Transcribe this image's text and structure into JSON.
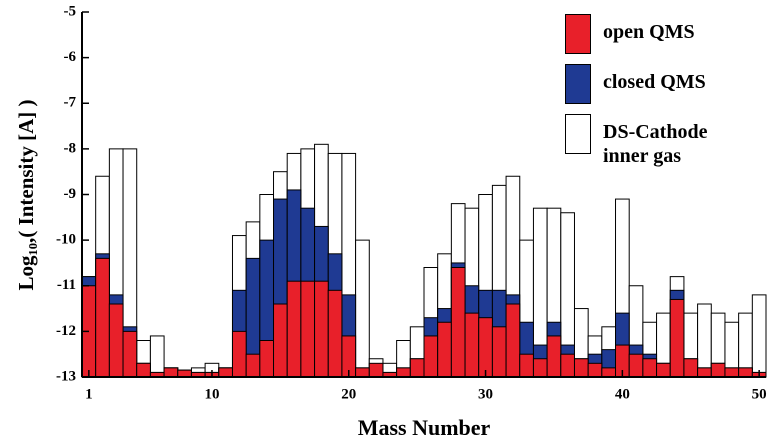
{
  "chart_data": {
    "type": "bar",
    "mode": "overlay",
    "x_label": "Mass Number",
    "y_label": "Log₁₀,( Intensity [A] )",
    "categories": [
      "1",
      null,
      null,
      null,
      null,
      null,
      null,
      null,
      null,
      "10",
      null,
      null,
      null,
      null,
      null,
      null,
      null,
      null,
      null,
      "20",
      null,
      null,
      null,
      null,
      null,
      null,
      null,
      null,
      null,
      "30",
      null,
      null,
      null,
      null,
      null,
      null,
      null,
      null,
      null,
      "40",
      null,
      null,
      null,
      null,
      null,
      null,
      null,
      null,
      null,
      "50"
    ],
    "series": [
      {
        "name": "open QMS",
        "color": "#e8202a",
        "values": [
          -11.0,
          -10.4,
          -11.4,
          -12.0,
          -12.7,
          -12.9,
          -12.8,
          -12.85,
          -12.9,
          -12.9,
          -12.8,
          -12.0,
          -12.5,
          -12.2,
          -11.4,
          -10.9,
          -10.9,
          -10.9,
          -11.1,
          -12.1,
          -12.8,
          -12.7,
          -12.9,
          -12.8,
          -12.6,
          -12.1,
          -11.8,
          -10.6,
          -11.6,
          -11.7,
          -11.9,
          -11.4,
          -12.5,
          -12.6,
          -12.1,
          -12.5,
          -12.6,
          -12.7,
          -12.8,
          -12.3,
          -12.5,
          -12.6,
          -12.7,
          -11.3,
          -12.6,
          -12.8,
          -12.7,
          -12.8,
          -12.8,
          -12.9
        ]
      },
      {
        "name": "closed QMS",
        "color": "#1f3a93",
        "values": [
          -10.8,
          -10.3,
          -11.2,
          -11.9,
          -12.7,
          -12.9,
          -12.8,
          -12.85,
          -12.9,
          -12.9,
          -12.8,
          -11.1,
          -10.4,
          -10.0,
          -9.1,
          -8.9,
          -9.3,
          -9.7,
          -10.3,
          -11.2,
          -12.8,
          -12.9,
          -12.9,
          -12.8,
          -12.6,
          -11.7,
          -11.5,
          -10.5,
          -11.0,
          -11.1,
          -11.1,
          -11.2,
          -11.8,
          -12.3,
          -11.8,
          -12.3,
          -12.6,
          -12.5,
          -12.4,
          -11.6,
          -12.3,
          -12.5,
          -12.7,
          -11.1,
          -12.6,
          -12.8,
          -12.7,
          -12.8,
          -12.8,
          -12.9
        ]
      },
      {
        "name": "DS-Cathode inner gas",
        "color": "#ffffff",
        "values": [
          -10.8,
          -8.6,
          -8.0,
          -8.0,
          -12.2,
          -12.1,
          -12.8,
          -12.85,
          -12.8,
          -12.7,
          -12.8,
          -9.9,
          -9.6,
          -9.0,
          -8.5,
          -8.1,
          -8.0,
          -7.9,
          -8.1,
          -8.1,
          -10.0,
          -12.6,
          -12.7,
          -12.2,
          -11.9,
          -10.6,
          -10.3,
          -9.2,
          -9.3,
          -9.0,
          -8.8,
          -8.6,
          -10.0,
          -9.3,
          -9.3,
          -9.4,
          -11.5,
          -12.1,
          -11.9,
          -9.1,
          -11.0,
          -11.8,
          -11.6,
          -10.8,
          -11.6,
          -11.4,
          -11.6,
          -11.8,
          -11.6,
          -11.2
        ]
      }
    ],
    "ylim": [
      -13,
      -5
    ],
    "yticks": [
      -13,
      -12,
      -11,
      -10,
      -9,
      -8,
      -7,
      -6,
      -5
    ],
    "grid": false
  }
}
